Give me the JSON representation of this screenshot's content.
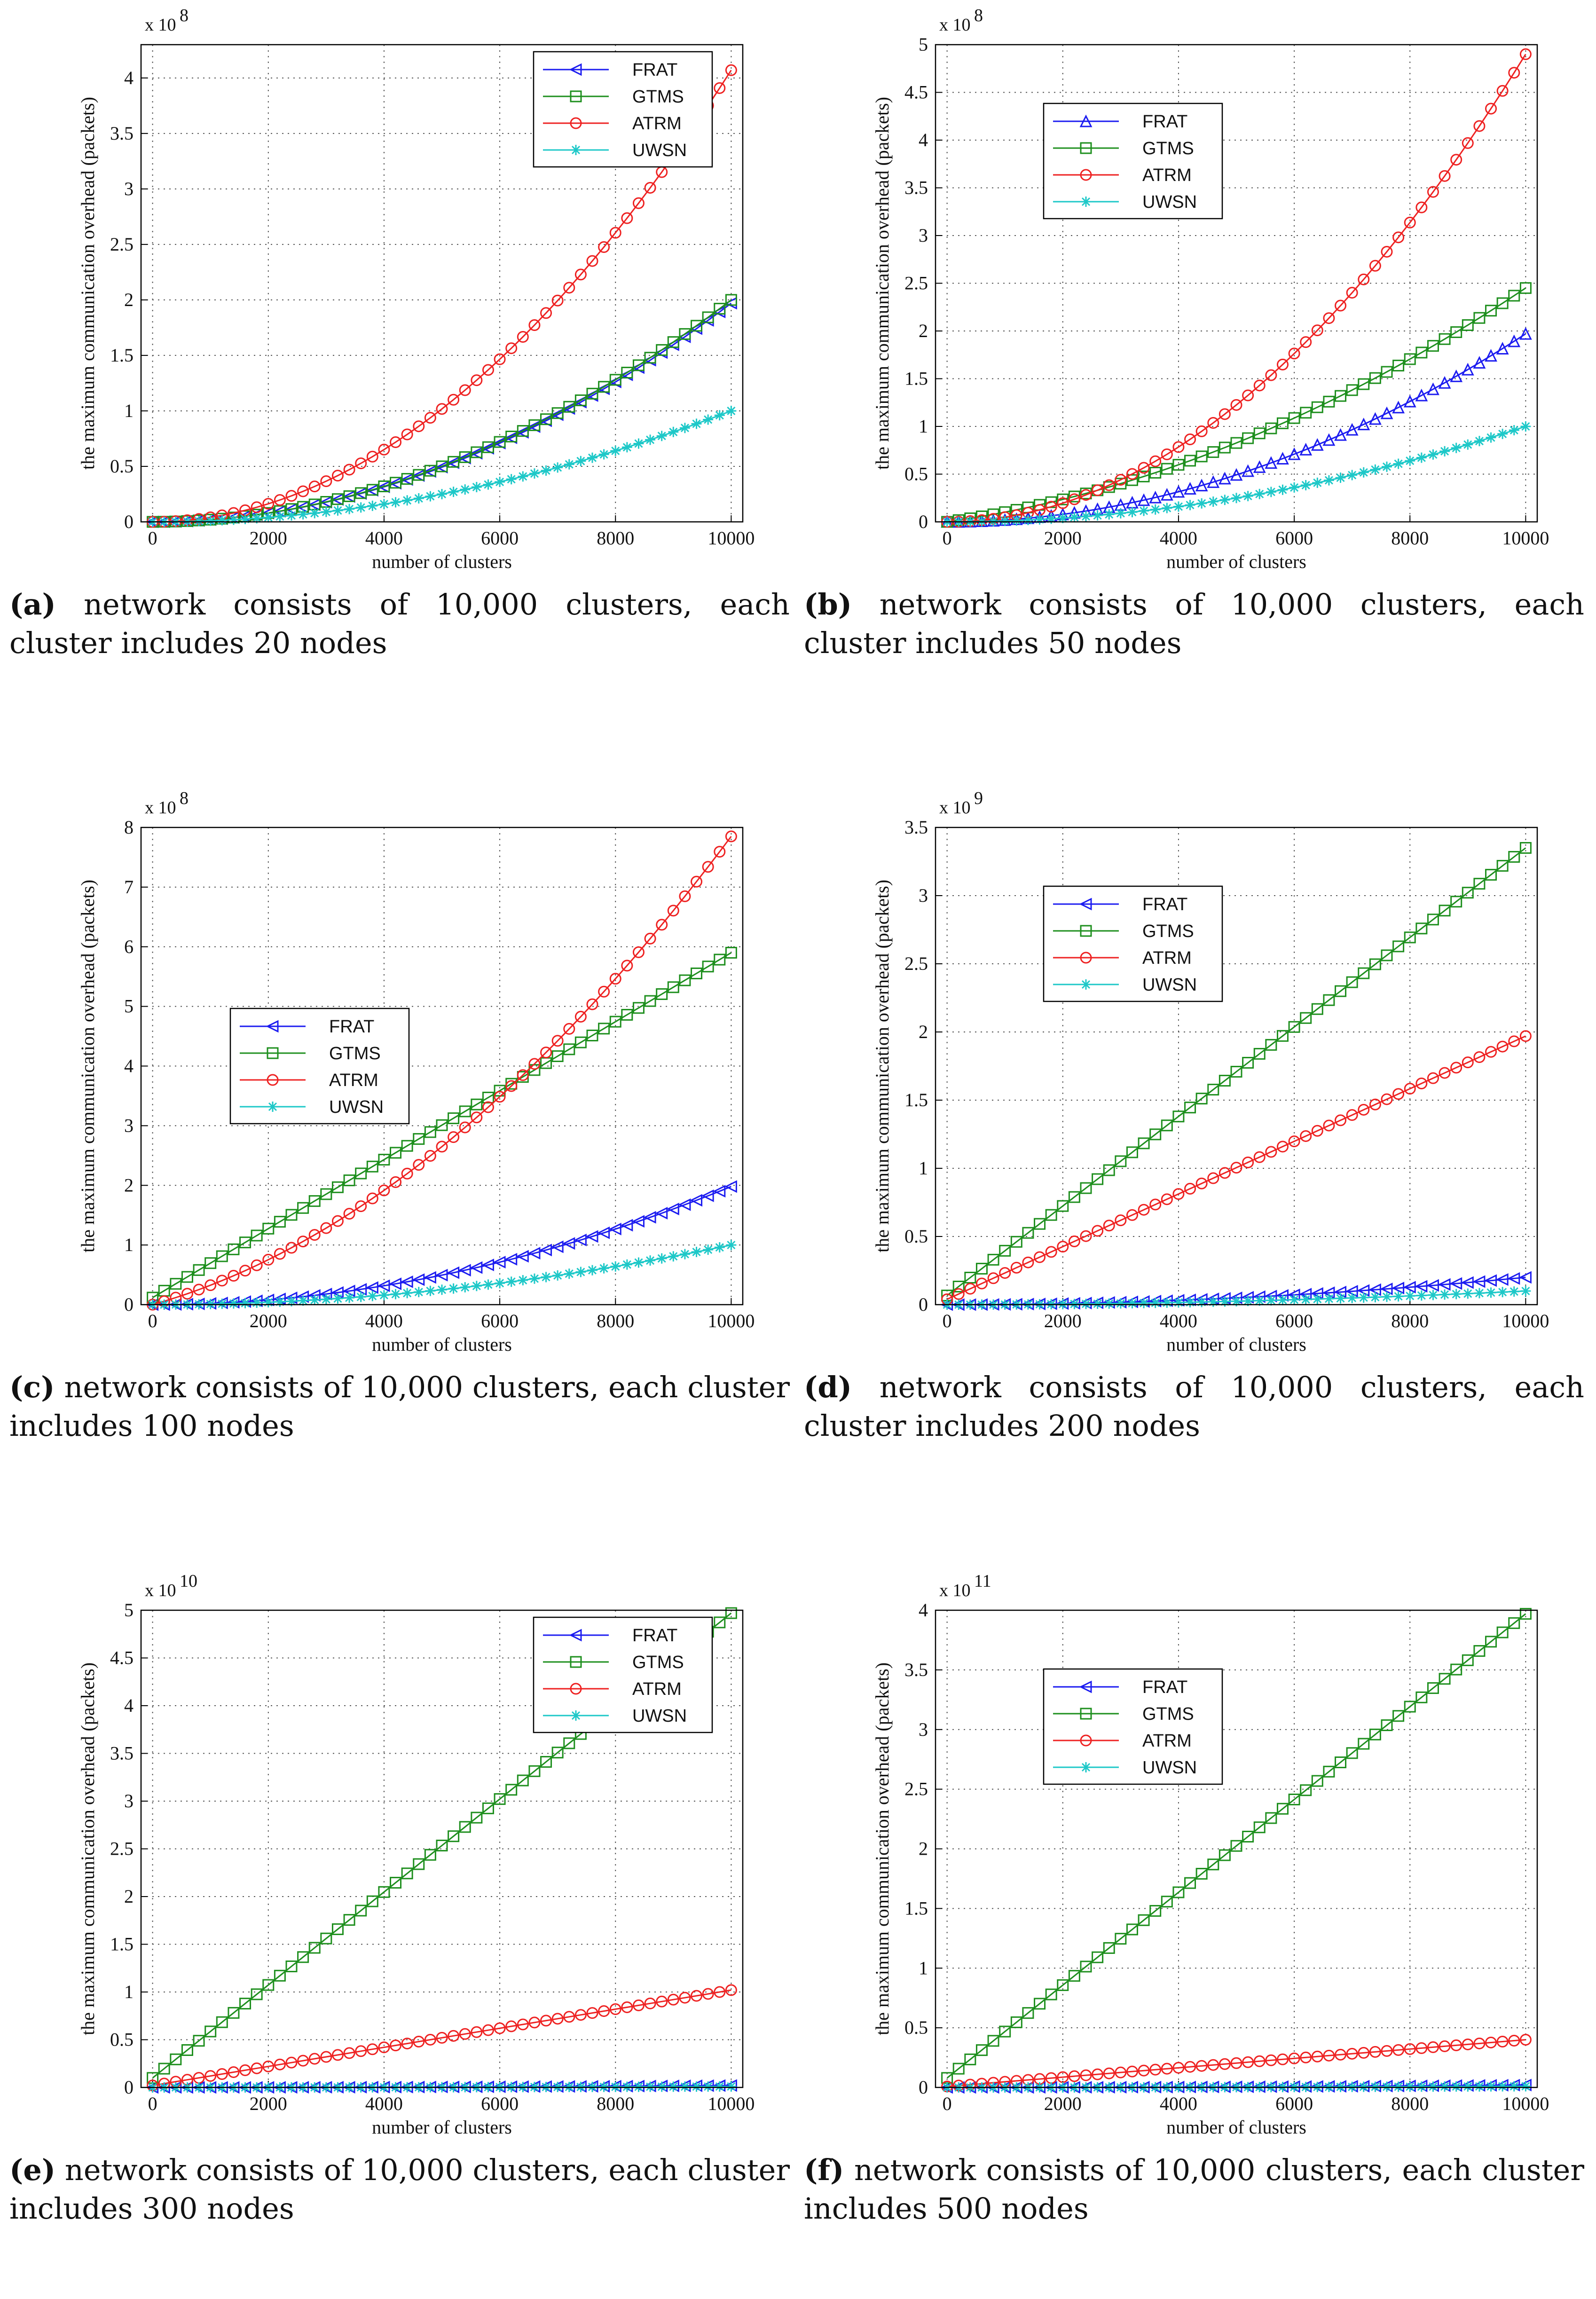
{
  "chart_data": [
    {
      "type": "line",
      "panel_label": "a",
      "caption": "network consists of 10,000 clusters, each cluster includes 20 nodes",
      "xlabel": "number of clusters",
      "ylabel": "the maximum communication overhead (packets)",
      "x_ticks": [
        "0",
        "2000",
        "4000",
        "6000",
        "8000",
        "10000"
      ],
      "y_ticks": [
        "0",
        "0.5",
        "1",
        "1.5",
        "2",
        "2.5",
        "3",
        "3.5",
        "4"
      ],
      "y_scale_text": "x 10",
      "y_scale_exp": "8",
      "xlim": [
        -200,
        10200
      ],
      "ylim": [
        0,
        4.3
      ],
      "grid": true,
      "legend_position": "top-right",
      "series": [
        {
          "name": "FRAT",
          "marker": "triangle-left",
          "color": "#1c1cf0",
          "kind": "quad",
          "end_value": 1.97
        },
        {
          "name": "GTMS",
          "marker": "square",
          "color": "#1e8f1e",
          "kind": "quad",
          "end_value": 2.0
        },
        {
          "name": "ATRM",
          "marker": "circle",
          "color": "#ee2222",
          "kind": "quad",
          "end_value": 4.07
        },
        {
          "name": "UWSN",
          "marker": "star",
          "color": "#1ec8c8",
          "kind": "quad",
          "end_value": 1.0
        }
      ]
    },
    {
      "type": "line",
      "panel_label": "b",
      "caption": "network consists of 10,000 clusters, each cluster includes 50 nodes",
      "xlabel": "number of clusters",
      "ylabel": "the maximum communication overhead (packets)",
      "x_ticks": [
        "0",
        "2000",
        "4000",
        "6000",
        "8000",
        "10000"
      ],
      "y_ticks": [
        "0",
        "0.5",
        "1",
        "1.5",
        "2",
        "2.5",
        "3",
        "3.5",
        "4",
        "4.5",
        "5"
      ],
      "y_scale_text": "x 10",
      "y_scale_exp": "8",
      "xlim": [
        -200,
        10200
      ],
      "ylim": [
        0,
        5
      ],
      "grid": true,
      "legend_position": "top-left",
      "series": [
        {
          "name": "FRAT",
          "marker": "triangle-up",
          "color": "#1c1cf0",
          "kind": "quad",
          "end_value": 1.97
        },
        {
          "name": "GTMS",
          "marker": "square",
          "color": "#1e8f1e",
          "kind": "mix",
          "end_value": 2.45
        },
        {
          "name": "ATRM",
          "marker": "circle",
          "color": "#ee2222",
          "kind": "quad",
          "end_value": 4.9
        },
        {
          "name": "UWSN",
          "marker": "star",
          "color": "#1ec8c8",
          "kind": "quad",
          "end_value": 1.0
        }
      ]
    },
    {
      "type": "line",
      "panel_label": "c",
      "caption": "network consists of 10,000 clusters, each cluster includes 100 nodes",
      "xlabel": "number of clusters",
      "ylabel": "the maximum communication overhead (packets)",
      "x_ticks": [
        "0",
        "2000",
        "4000",
        "6000",
        "8000",
        "10000"
      ],
      "y_ticks": [
        "0",
        "1",
        "2",
        "3",
        "4",
        "5",
        "6",
        "7",
        "8"
      ],
      "y_scale_text": "x 10",
      "y_scale_exp": "8",
      "xlim": [
        -200,
        10200
      ],
      "ylim": [
        0,
        8
      ],
      "grid": true,
      "legend_position": "middle-left",
      "series": [
        {
          "name": "FRAT",
          "marker": "triangle-left",
          "color": "#1c1cf0",
          "kind": "quad",
          "end_value": 1.98
        },
        {
          "name": "GTMS",
          "marker": "square",
          "color": "#1e8f1e",
          "kind": "lin",
          "end_value": 5.9
        },
        {
          "name": "ATRM",
          "marker": "circle",
          "color": "#ee2222",
          "kind": "mix",
          "end_value": 7.85
        },
        {
          "name": "UWSN",
          "marker": "star",
          "color": "#1ec8c8",
          "kind": "quad",
          "end_value": 1.0
        }
      ]
    },
    {
      "type": "line",
      "panel_label": "d",
      "caption": "network consists of 10,000 clusters, each cluster includes 200 nodes",
      "xlabel": "number of clusters",
      "ylabel": "the maximum communication overhead (packets)",
      "x_ticks": [
        "0",
        "2000",
        "4000",
        "6000",
        "8000",
        "10000"
      ],
      "y_ticks": [
        "0",
        "0.5",
        "1",
        "1.5",
        "2",
        "2.5",
        "3",
        "3.5"
      ],
      "y_scale_text": "x 10",
      "y_scale_exp": "9",
      "xlim": [
        -200,
        10200
      ],
      "ylim": [
        0,
        3.5
      ],
      "grid": true,
      "legend_position": "top-left",
      "series": [
        {
          "name": "FRAT",
          "marker": "triangle-left",
          "color": "#1c1cf0",
          "kind": "quad",
          "end_value": 0.2
        },
        {
          "name": "GTMS",
          "marker": "square",
          "color": "#1e8f1e",
          "kind": "lin",
          "end_value": 3.35
        },
        {
          "name": "ATRM",
          "marker": "circle",
          "color": "#ee2222",
          "kind": "lin",
          "end_value": 1.97
        },
        {
          "name": "UWSN",
          "marker": "star",
          "color": "#1ec8c8",
          "kind": "quad",
          "end_value": 0.1
        }
      ]
    },
    {
      "type": "line",
      "panel_label": "e",
      "caption": "network consists of 10,000 clusters, each cluster includes 300 nodes",
      "xlabel": "number of clusters",
      "ylabel": "the maximum communication overhead (packets)",
      "x_ticks": [
        "0",
        "2000",
        "4000",
        "6000",
        "8000",
        "10000"
      ],
      "y_ticks": [
        "0",
        "0.5",
        "1",
        "1.5",
        "2",
        "2.5",
        "3",
        "3.5",
        "4",
        "4.5",
        "5"
      ],
      "y_scale_text": "x 10",
      "y_scale_exp": "10",
      "xlim": [
        -200,
        10200
      ],
      "ylim": [
        0,
        5
      ],
      "grid": true,
      "legend_position": "top-right",
      "series": [
        {
          "name": "FRAT",
          "marker": "triangle-left",
          "color": "#1c1cf0",
          "kind": "quad",
          "end_value": 0.02
        },
        {
          "name": "GTMS",
          "marker": "square",
          "color": "#1e8f1e",
          "kind": "lin",
          "end_value": 4.97
        },
        {
          "name": "ATRM",
          "marker": "circle",
          "color": "#ee2222",
          "kind": "lin",
          "end_value": 1.02
        },
        {
          "name": "UWSN",
          "marker": "star",
          "color": "#1ec8c8",
          "kind": "quad",
          "end_value": 0.01
        }
      ]
    },
    {
      "type": "line",
      "panel_label": "f",
      "caption": "network consists of 10,000 clusters, each cluster includes 500 nodes",
      "xlabel": "number of clusters",
      "ylabel": "the maximum communication overhead (packets)",
      "x_ticks": [
        "0",
        "2000",
        "4000",
        "6000",
        "8000",
        "10000"
      ],
      "y_ticks": [
        "0",
        "0.5",
        "1",
        "1.5",
        "2",
        "2.5",
        "3",
        "3.5",
        "4"
      ],
      "y_scale_text": "x 10",
      "y_scale_exp": "11",
      "xlim": [
        -200,
        10200
      ],
      "ylim": [
        0,
        4
      ],
      "grid": true,
      "legend_position": "top-left",
      "series": [
        {
          "name": "FRAT",
          "marker": "triangle-left",
          "color": "#1c1cf0",
          "kind": "quad",
          "end_value": 0.02
        },
        {
          "name": "GTMS",
          "marker": "square",
          "color": "#1e8f1e",
          "kind": "lin",
          "end_value": 3.97
        },
        {
          "name": "ATRM",
          "marker": "circle",
          "color": "#ee2222",
          "kind": "lin",
          "end_value": 0.4
        },
        {
          "name": "UWSN",
          "marker": "star",
          "color": "#1ec8c8",
          "kind": "quad",
          "end_value": 0.01
        }
      ]
    }
  ]
}
